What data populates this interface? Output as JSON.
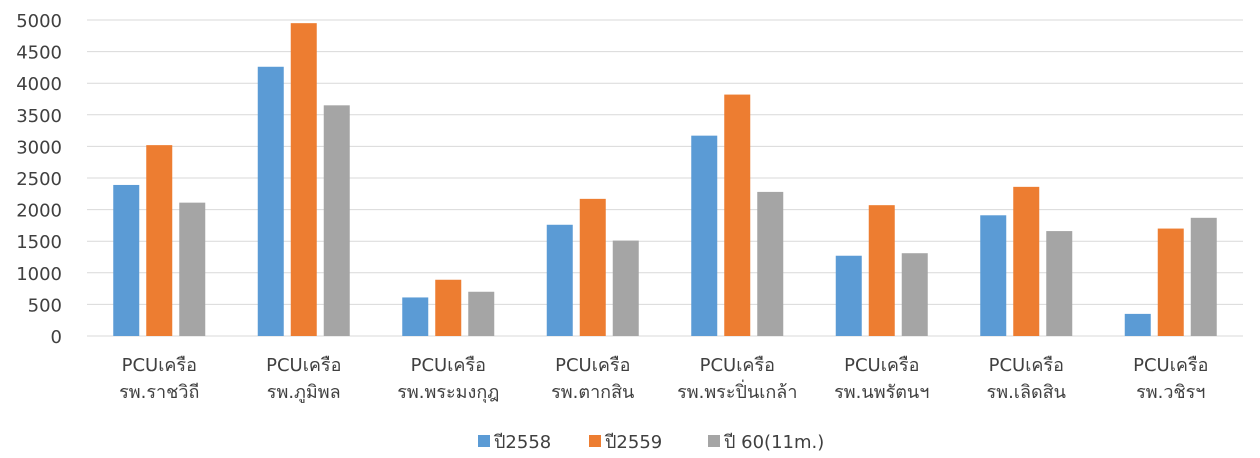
{
  "chart_data": {
    "type": "bar",
    "title": "",
    "xlabel": "",
    "ylabel": "",
    "ylim": [
      0,
      5000
    ],
    "yticks": [
      0,
      500,
      1000,
      1500,
      2000,
      2500,
      3000,
      3500,
      4000,
      4500,
      5000
    ],
    "grid": true,
    "legend_position": "bottom",
    "categories": [
      [
        "PCUเครือ",
        "รพ.ราชวิถี"
      ],
      [
        "PCUเครือ",
        "รพ.ภูมิพล"
      ],
      [
        "PCUเครือ",
        "รพ.พระมงกุฎ"
      ],
      [
        "PCUเครือ",
        "รพ.ตากสิน"
      ],
      [
        "PCUเครือ",
        "รพ.พระปิ่นเกล้า"
      ],
      [
        "PCUเครือ",
        "รพ.นพรัตนฯ"
      ],
      [
        "PCUเครือ",
        "รพ.เลิดสิน"
      ],
      [
        "PCUเครือ",
        "รพ.วชิรฯ"
      ]
    ],
    "series": [
      {
        "name": "ปี2558",
        "color": "#5B9BD5",
        "values": [
          2390,
          4260,
          610,
          1760,
          3170,
          1270,
          1910,
          350
        ]
      },
      {
        "name": "ปี2559",
        "color": "#ED7D31",
        "values": [
          3020,
          4950,
          890,
          2170,
          3820,
          2070,
          2360,
          1700
        ]
      },
      {
        "name": "ปี 60(11m.)",
        "color": "#A5A5A5",
        "values": [
          2110,
          3650,
          700,
          1510,
          2280,
          1310,
          1660,
          1870
        ]
      }
    ]
  }
}
